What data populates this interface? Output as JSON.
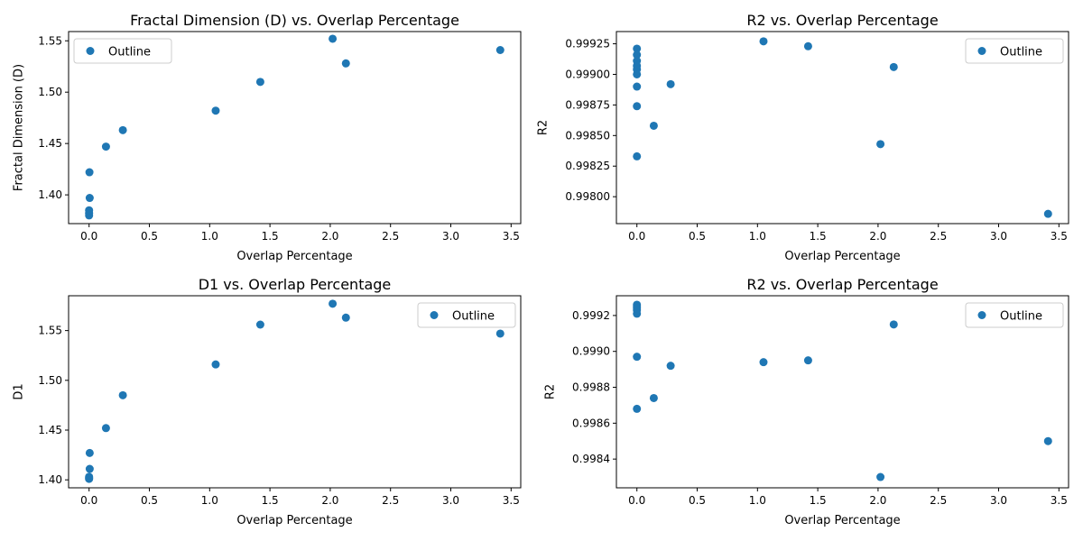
{
  "colors": {
    "marker": "#1f77b4"
  },
  "chart_data": [
    {
      "type": "scatter",
      "title": "Fractal Dimension (D) vs. Overlap Percentage",
      "xlabel": "Overlap Percentage",
      "ylabel": "Fractal Dimension (D)",
      "legend": {
        "entry": "Outline",
        "placement": "upper-left"
      },
      "xlim": [
        -0.17,
        3.58
      ],
      "ylim": [
        1.372,
        1.559
      ],
      "xticks": [
        0.0,
        0.5,
        1.0,
        1.5,
        2.0,
        2.5,
        3.0,
        3.5
      ],
      "xtick_labels": [
        "0.0",
        "0.5",
        "1.0",
        "1.5",
        "2.0",
        "2.5",
        "3.0",
        "3.5"
      ],
      "yticks": [
        1.4,
        1.45,
        1.5,
        1.55
      ],
      "ytick_labels": [
        "1.40",
        "1.45",
        "1.50",
        "1.55"
      ],
      "series": [
        {
          "name": "Outline",
          "x": [
            0.0,
            0.0,
            0.0,
            0.005,
            0.003,
            0.14,
            0.28,
            1.05,
            1.42,
            2.02,
            2.13,
            3.41
          ],
          "y": [
            1.38,
            1.382,
            1.385,
            1.397,
            1.422,
            1.447,
            1.463,
            1.482,
            1.51,
            1.552,
            1.528,
            1.541
          ]
        }
      ]
    },
    {
      "type": "scatter",
      "title": "R2 vs. Overlap Percentage",
      "xlabel": "Overlap Percentage",
      "ylabel": "R2",
      "legend": {
        "entry": "Outline",
        "placement": "upper-right"
      },
      "xlim": [
        -0.17,
        3.58
      ],
      "ylim": [
        0.99778,
        0.99935
      ],
      "xticks": [
        0.0,
        0.5,
        1.0,
        1.5,
        2.0,
        2.5,
        3.0,
        3.5
      ],
      "xtick_labels": [
        "0.0",
        "0.5",
        "1.0",
        "1.5",
        "2.0",
        "2.5",
        "3.0",
        "3.5"
      ],
      "yticks": [
        0.998,
        0.99825,
        0.9985,
        0.99875,
        0.999,
        0.99925
      ],
      "ytick_labels": [
        "0.99800",
        "0.99825",
        "0.99850",
        "0.99875",
        "0.99900",
        "0.99925"
      ],
      "series": [
        {
          "name": "Outline",
          "x": [
            0.0,
            0.0,
            0.0,
            0.0,
            0.0,
            0.0,
            0.0,
            0.0,
            0.0,
            0.14,
            0.28,
            1.05,
            1.42,
            2.02,
            2.13,
            3.41
          ],
          "y": [
            0.99921,
            0.99916,
            0.99911,
            0.99907,
            0.99904,
            0.999,
            0.9989,
            0.99874,
            0.99833,
            0.99858,
            0.99892,
            0.99927,
            0.99923,
            0.99843,
            0.99906,
            0.99786
          ]
        }
      ]
    },
    {
      "type": "scatter",
      "title": "D1 vs. Overlap Percentage",
      "xlabel": "Overlap Percentage",
      "ylabel": "D1",
      "legend": {
        "entry": "Outline",
        "placement": "upper-right"
      },
      "xlim": [
        -0.17,
        3.58
      ],
      "ylim": [
        1.392,
        1.585
      ],
      "xticks": [
        0.0,
        0.5,
        1.0,
        1.5,
        2.0,
        2.5,
        3.0,
        3.5
      ],
      "xtick_labels": [
        "0.0",
        "0.5",
        "1.0",
        "1.5",
        "2.0",
        "2.5",
        "3.0",
        "3.5"
      ],
      "yticks": [
        1.4,
        1.45,
        1.5,
        1.55
      ],
      "ytick_labels": [
        "1.40",
        "1.45",
        "1.50",
        "1.55"
      ],
      "series": [
        {
          "name": "Outline",
          "x": [
            0.0,
            0.0,
            0.0,
            0.005,
            0.005,
            0.14,
            0.28,
            1.05,
            1.42,
            2.02,
            2.13,
            3.41
          ],
          "y": [
            1.401,
            1.402,
            1.403,
            1.411,
            1.427,
            1.452,
            1.485,
            1.516,
            1.556,
            1.577,
            1.563,
            1.547
          ]
        }
      ]
    },
    {
      "type": "scatter",
      "title": "R2 vs. Overlap Percentage",
      "xlabel": "Overlap Percentage",
      "ylabel": "R2",
      "legend": {
        "entry": "Outline",
        "placement": "upper-right"
      },
      "xlim": [
        -0.17,
        3.58
      ],
      "ylim": [
        0.99824,
        0.99931
      ],
      "xticks": [
        0.0,
        0.5,
        1.0,
        1.5,
        2.0,
        2.5,
        3.0,
        3.5
      ],
      "xtick_labels": [
        "0.0",
        "0.5",
        "1.0",
        "1.5",
        "2.0",
        "2.5",
        "3.0",
        "3.5"
      ],
      "yticks": [
        0.9984,
        0.9986,
        0.9988,
        0.999,
        0.9992
      ],
      "ytick_labels": [
        "0.9984",
        "0.9986",
        "0.9988",
        "0.9990",
        "0.9992"
      ],
      "series": [
        {
          "name": "Outline",
          "x": [
            0.0,
            0.0,
            0.0,
            0.0,
            0.0,
            0.0,
            0.0,
            0.14,
            0.28,
            1.05,
            1.42,
            2.02,
            2.13,
            3.41
          ],
          "y": [
            0.99926,
            0.99925,
            0.99923,
            0.99921,
            0.99897,
            0.99868,
            0.99924,
            0.99874,
            0.99892,
            0.99894,
            0.99895,
            0.9983,
            0.99915,
            0.9985
          ]
        }
      ]
    }
  ]
}
